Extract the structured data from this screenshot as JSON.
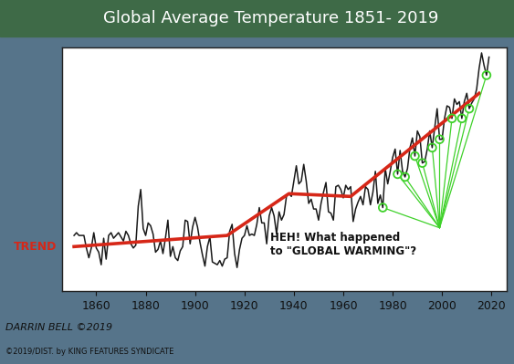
{
  "chart_data": {
    "type": "line",
    "title": "Global Average Temperature 1851- 2019",
    "x": [
      1851,
      1852,
      1853,
      1854,
      1855,
      1856,
      1857,
      1858,
      1859,
      1860,
      1861,
      1862,
      1863,
      1864,
      1865,
      1866,
      1867,
      1868,
      1869,
      1870,
      1871,
      1872,
      1873,
      1874,
      1875,
      1876,
      1877,
      1878,
      1879,
      1880,
      1881,
      1882,
      1883,
      1884,
      1885,
      1886,
      1887,
      1888,
      1889,
      1890,
      1891,
      1892,
      1893,
      1894,
      1895,
      1896,
      1897,
      1898,
      1899,
      1900,
      1901,
      1902,
      1903,
      1904,
      1905,
      1906,
      1907,
      1908,
      1909,
      1910,
      1911,
      1912,
      1913,
      1914,
      1915,
      1916,
      1917,
      1918,
      1919,
      1920,
      1921,
      1922,
      1923,
      1924,
      1925,
      1926,
      1927,
      1928,
      1929,
      1930,
      1931,
      1932,
      1933,
      1934,
      1935,
      1936,
      1937,
      1938,
      1939,
      1940,
      1941,
      1942,
      1943,
      1944,
      1945,
      1946,
      1947,
      1948,
      1949,
      1950,
      1951,
      1952,
      1953,
      1954,
      1955,
      1956,
      1957,
      1958,
      1959,
      1960,
      1961,
      1962,
      1963,
      1964,
      1965,
      1966,
      1967,
      1968,
      1969,
      1970,
      1971,
      1972,
      1973,
      1974,
      1975,
      1976,
      1977,
      1978,
      1979,
      1980,
      1981,
      1982,
      1983,
      1984,
      1985,
      1986,
      1987,
      1988,
      1989,
      1990,
      1991,
      1992,
      1993,
      1994,
      1995,
      1996,
      1997,
      1998,
      1999,
      2000,
      2001,
      2002,
      2003,
      2004,
      2005,
      2006,
      2007,
      2008,
      2009,
      2010,
      2011,
      2012,
      2013,
      2014,
      2015,
      2016,
      2017,
      2018,
      2019
    ],
    "values": [
      -0.3,
      -0.28,
      -0.3,
      -0.3,
      -0.3,
      -0.39,
      -0.46,
      -0.39,
      -0.28,
      -0.39,
      -0.42,
      -0.51,
      -0.32,
      -0.47,
      -0.3,
      -0.28,
      -0.32,
      -0.3,
      -0.28,
      -0.31,
      -0.34,
      -0.27,
      -0.3,
      -0.36,
      -0.39,
      -0.37,
      -0.09,
      0.03,
      -0.25,
      -0.3,
      -0.21,
      -0.23,
      -0.29,
      -0.42,
      -0.4,
      -0.34,
      -0.43,
      -0.32,
      -0.19,
      -0.45,
      -0.38,
      -0.46,
      -0.48,
      -0.41,
      -0.38,
      -0.19,
      -0.2,
      -0.36,
      -0.24,
      -0.17,
      -0.24,
      -0.35,
      -0.44,
      -0.52,
      -0.38,
      -0.31,
      -0.49,
      -0.5,
      -0.51,
      -0.48,
      -0.52,
      -0.47,
      -0.46,
      -0.27,
      -0.22,
      -0.43,
      -0.53,
      -0.4,
      -0.32,
      -0.3,
      -0.23,
      -0.3,
      -0.29,
      -0.3,
      -0.22,
      -0.1,
      -0.21,
      -0.21,
      -0.36,
      -0.16,
      -0.1,
      -0.16,
      -0.29,
      -0.13,
      -0.19,
      -0.15,
      -0.02,
      0.0,
      -0.02,
      0.09,
      0.2,
      0.07,
      0.09,
      0.21,
      0.09,
      -0.07,
      -0.04,
      -0.11,
      -0.11,
      -0.19,
      -0.07,
      0.01,
      0.08,
      -0.13,
      -0.14,
      -0.19,
      0.05,
      0.06,
      0.03,
      -0.03,
      0.06,
      0.03,
      0.05,
      -0.2,
      -0.11,
      -0.06,
      -0.02,
      -0.08,
      0.05,
      0.03,
      -0.08,
      0.01,
      0.16,
      -0.07,
      -0.01,
      -0.1,
      0.18,
      0.07,
      0.16,
      0.26,
      0.32,
      0.14,
      0.31,
      0.16,
      0.12,
      0.18,
      0.33,
      0.4,
      0.27,
      0.45,
      0.41,
      0.22,
      0.23,
      0.32,
      0.45,
      0.33,
      0.47,
      0.61,
      0.39,
      0.39,
      0.54,
      0.63,
      0.62,
      0.54,
      0.68,
      0.64,
      0.66,
      0.54,
      0.66,
      0.72,
      0.61,
      0.65,
      0.68,
      0.75,
      0.9,
      1.01,
      0.92,
      0.85,
      0.98
    ],
    "color": "#1a1a1a",
    "trend": {
      "label": "TREND",
      "x": [
        1851,
        1913,
        1938,
        1963,
        2015
      ],
      "values": [
        -0.38,
        -0.3,
        0.0,
        -0.02,
        0.72
      ],
      "color": "#d62718"
    },
    "marked_x": [
      1976,
      1982,
      1985,
      1989,
      1992,
      1996,
      1999,
      2004,
      2008,
      2011,
      2018
    ],
    "marked_color": "#3fd12a",
    "annotation": "HEH! What happened\nto \"GLOBAL WARMING\"?",
    "signature": "DARRIN BELL ©2019",
    "credit": "©2019/DIST. by KING FEATURES SYNDICATE",
    "xlim": [
      1846,
      2026
    ],
    "xticks": [
      1860,
      1880,
      1900,
      1920,
      1940,
      1960,
      1980,
      2000,
      2020
    ],
    "ylim": [
      -0.7,
      1.05
    ],
    "yticks": [],
    "tick_labels": "x",
    "grid": false
  }
}
